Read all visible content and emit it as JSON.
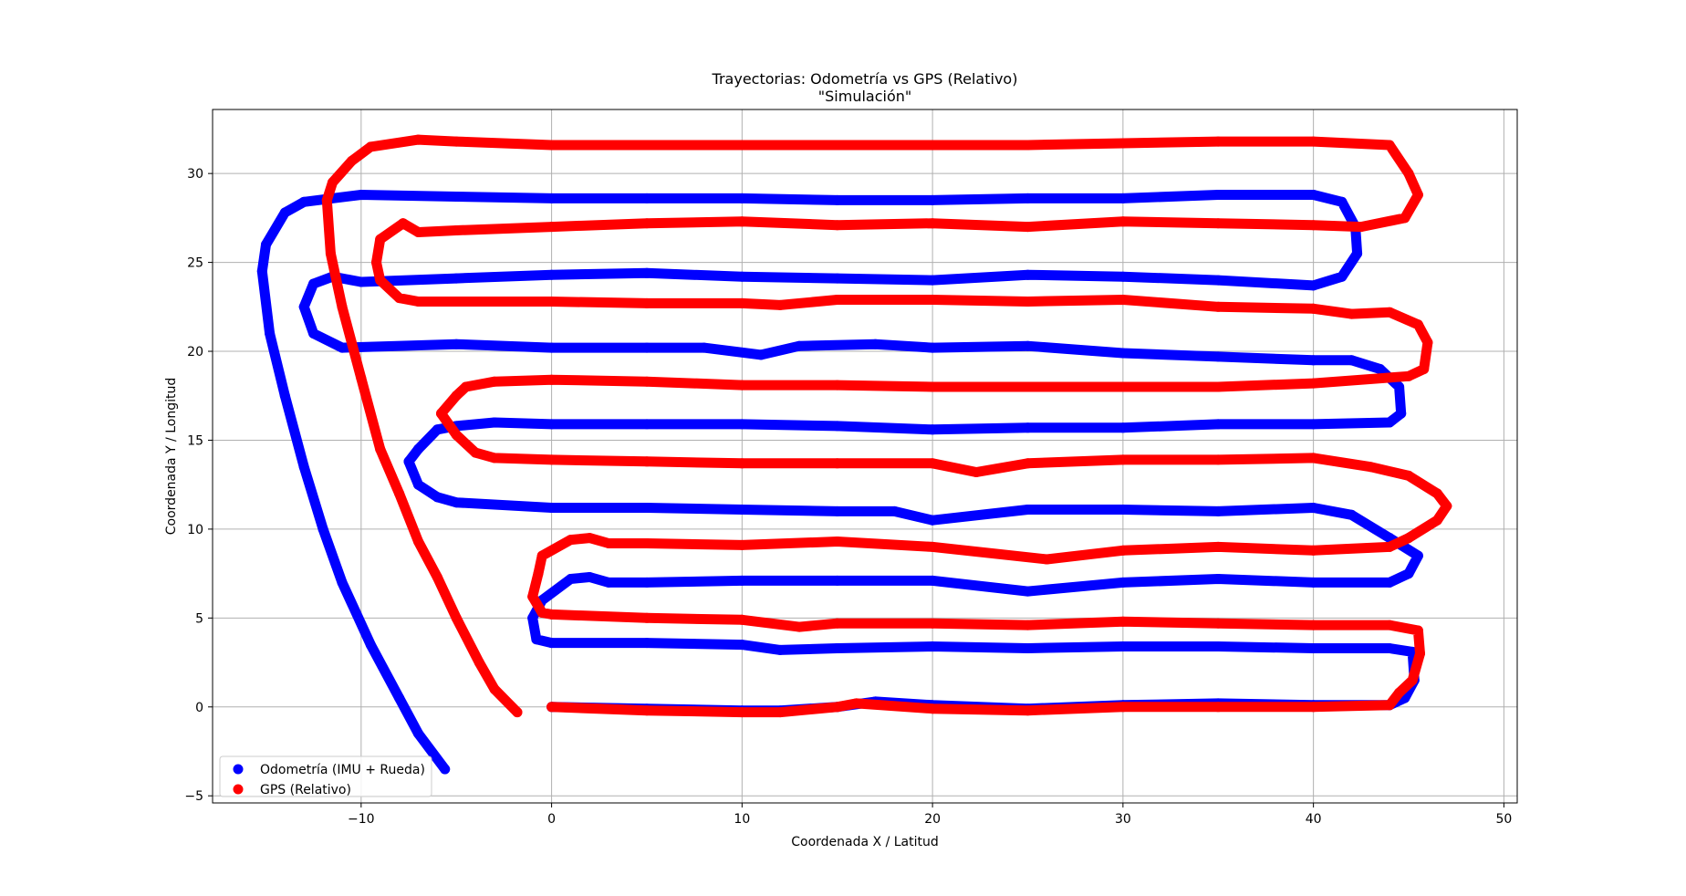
{
  "chart_data": {
    "type": "scatter",
    "title": "Trayectorias: Odometría vs GPS (Relativo)",
    "subtitle": "\"Simulación\"",
    "xlabel": "Coordenada X / Latitud",
    "ylabel": "Coordenada Y / Longitud",
    "xlim": [
      -17.8,
      50.7
    ],
    "ylim": [
      -5.4,
      33.6
    ],
    "xticks": [
      -10,
      0,
      10,
      20,
      30,
      40,
      50
    ],
    "yticks": [
      -5,
      0,
      5,
      10,
      15,
      20,
      25,
      30
    ],
    "grid": true,
    "legend_position": "lower-left",
    "series": [
      {
        "name": "Odometría (IMU + Rueda)",
        "color": "#0000ff",
        "points": [
          [
            -5.6,
            -3.5
          ],
          [
            -7,
            -1.5
          ],
          [
            -8,
            0.5
          ],
          [
            -9.5,
            3.5
          ],
          [
            -11,
            7
          ],
          [
            -12,
            10
          ],
          [
            -13,
            13.5
          ],
          [
            -14,
            17.5
          ],
          [
            -14.8,
            21
          ],
          [
            -15.2,
            24.5
          ],
          [
            -15,
            26
          ],
          [
            -14,
            27.8
          ],
          [
            -13,
            28.4
          ],
          [
            -10,
            28.8
          ],
          [
            -5,
            28.7
          ],
          [
            0,
            28.6
          ],
          [
            5,
            28.6
          ],
          [
            10,
            28.6
          ],
          [
            15,
            28.5
          ],
          [
            20,
            28.5
          ],
          [
            25,
            28.6
          ],
          [
            30,
            28.6
          ],
          [
            35,
            28.8
          ],
          [
            40,
            28.8
          ],
          [
            41.5,
            28.4
          ],
          [
            42.2,
            27
          ],
          [
            42.3,
            25.5
          ],
          [
            41.5,
            24.2
          ],
          [
            40,
            23.7
          ],
          [
            35,
            24
          ],
          [
            30,
            24.2
          ],
          [
            25,
            24.3
          ],
          [
            20,
            24
          ],
          [
            15,
            24.1
          ],
          [
            10,
            24.2
          ],
          [
            5,
            24.4
          ],
          [
            0,
            24.3
          ],
          [
            -5,
            24.1
          ],
          [
            -10,
            23.9
          ],
          [
            -11.5,
            24.2
          ],
          [
            -12.5,
            23.8
          ],
          [
            -13,
            22.5
          ],
          [
            -12.5,
            21
          ],
          [
            -11,
            20.2
          ],
          [
            -5,
            20.4
          ],
          [
            0,
            20.2
          ],
          [
            5,
            20.2
          ],
          [
            8,
            20.2
          ],
          [
            11,
            19.8
          ],
          [
            13,
            20.3
          ],
          [
            17,
            20.4
          ],
          [
            20,
            20.2
          ],
          [
            25,
            20.3
          ],
          [
            30,
            19.9
          ],
          [
            35,
            19.7
          ],
          [
            40,
            19.5
          ],
          [
            42,
            19.5
          ],
          [
            43.5,
            19
          ],
          [
            44.5,
            18
          ],
          [
            44.6,
            16.5
          ],
          [
            44,
            16
          ],
          [
            40,
            15.9
          ],
          [
            35,
            15.9
          ],
          [
            30,
            15.7
          ],
          [
            25,
            15.7
          ],
          [
            20,
            15.6
          ],
          [
            15,
            15.8
          ],
          [
            10,
            15.9
          ],
          [
            5,
            15.9
          ],
          [
            0,
            15.9
          ],
          [
            -3,
            16
          ],
          [
            -5,
            15.8
          ],
          [
            -6,
            15.6
          ],
          [
            -7,
            14.5
          ],
          [
            -7.5,
            13.8
          ],
          [
            -7,
            12.5
          ],
          [
            -6,
            11.8
          ],
          [
            -5,
            11.5
          ],
          [
            0,
            11.2
          ],
          [
            5,
            11.2
          ],
          [
            10,
            11.1
          ],
          [
            15,
            11.0
          ],
          [
            18,
            11.0
          ],
          [
            20,
            10.5
          ],
          [
            25,
            11.1
          ],
          [
            30,
            11.1
          ],
          [
            35,
            11.0
          ],
          [
            40,
            11.2
          ],
          [
            42,
            10.8
          ],
          [
            44,
            9.5
          ],
          [
            45.5,
            8.5
          ],
          [
            45,
            7.5
          ],
          [
            44,
            7
          ],
          [
            40,
            7
          ],
          [
            35,
            7.2
          ],
          [
            30,
            7
          ],
          [
            25,
            6.5
          ],
          [
            20,
            7.1
          ],
          [
            15,
            7.1
          ],
          [
            10,
            7.1
          ],
          [
            5,
            7.0
          ],
          [
            3,
            7.0
          ],
          [
            2,
            7.3
          ],
          [
            1,
            7.2
          ],
          [
            -0.5,
            6
          ],
          [
            -1,
            5
          ],
          [
            -0.8,
            3.8
          ],
          [
            0,
            3.6
          ],
          [
            5,
            3.6
          ],
          [
            10,
            3.5
          ],
          [
            12,
            3.2
          ],
          [
            15,
            3.3
          ],
          [
            20,
            3.4
          ],
          [
            25,
            3.3
          ],
          [
            30,
            3.4
          ],
          [
            35,
            3.4
          ],
          [
            40,
            3.3
          ],
          [
            44,
            3.3
          ],
          [
            45.2,
            3.1
          ],
          [
            45.3,
            1.5
          ],
          [
            44.8,
            0.5
          ],
          [
            44,
            0.1
          ],
          [
            40,
            0.1
          ],
          [
            35,
            0.2
          ],
          [
            30,
            0.1
          ],
          [
            25,
            -0.1
          ],
          [
            20,
            0.1
          ],
          [
            17,
            0.3
          ],
          [
            15,
            0
          ],
          [
            12,
            -0.2
          ],
          [
            10,
            -0.2
          ],
          [
            5,
            -0.1
          ],
          [
            0,
            0
          ]
        ]
      },
      {
        "name": "GPS (Relativo)",
        "color": "#ff0000",
        "points": [
          [
            -1.8,
            -0.3
          ],
          [
            -3,
            1
          ],
          [
            -3.8,
            2.5
          ],
          [
            -5,
            5
          ],
          [
            -6,
            7.3
          ],
          [
            -7,
            9.3
          ],
          [
            -8,
            12
          ],
          [
            -9,
            14.5
          ],
          [
            -10,
            18.5
          ],
          [
            -11,
            22.5
          ],
          [
            -11.6,
            25.5
          ],
          [
            -11.8,
            28.5
          ],
          [
            -11.5,
            29.5
          ],
          [
            -10.5,
            30.7
          ],
          [
            -9.5,
            31.5
          ],
          [
            -7,
            31.9
          ],
          [
            -5,
            31.8
          ],
          [
            0,
            31.6
          ],
          [
            5,
            31.6
          ],
          [
            10,
            31.6
          ],
          [
            15,
            31.6
          ],
          [
            20,
            31.6
          ],
          [
            25,
            31.6
          ],
          [
            30,
            31.7
          ],
          [
            35,
            31.8
          ],
          [
            40,
            31.8
          ],
          [
            44,
            31.6
          ],
          [
            45,
            30
          ],
          [
            45.5,
            28.8
          ],
          [
            44.8,
            27.5
          ],
          [
            42.5,
            27.0
          ],
          [
            40,
            27.1
          ],
          [
            35,
            27.2
          ],
          [
            30,
            27.3
          ],
          [
            25,
            27.0
          ],
          [
            20,
            27.2
          ],
          [
            15,
            27.1
          ],
          [
            10,
            27.3
          ],
          [
            5,
            27.2
          ],
          [
            0,
            27.0
          ],
          [
            -5,
            26.8
          ],
          [
            -7,
            26.7
          ],
          [
            -7.8,
            27.2
          ],
          [
            -9,
            26.3
          ],
          [
            -9.2,
            25
          ],
          [
            -9,
            24
          ],
          [
            -8,
            23
          ],
          [
            -7,
            22.8
          ],
          [
            0,
            22.8
          ],
          [
            5,
            22.7
          ],
          [
            10,
            22.7
          ],
          [
            12,
            22.6
          ],
          [
            15,
            22.9
          ],
          [
            20,
            22.9
          ],
          [
            25,
            22.8
          ],
          [
            30,
            22.9
          ],
          [
            35,
            22.5
          ],
          [
            40,
            22.4
          ],
          [
            42,
            22.1
          ],
          [
            44,
            22.2
          ],
          [
            45.5,
            21.5
          ],
          [
            46,
            20.5
          ],
          [
            45.8,
            19
          ],
          [
            45,
            18.6
          ],
          [
            40,
            18.2
          ],
          [
            35,
            18.0
          ],
          [
            30,
            18.0
          ],
          [
            25,
            18.0
          ],
          [
            20,
            18.0
          ],
          [
            15,
            18.1
          ],
          [
            10,
            18.1
          ],
          [
            5,
            18.3
          ],
          [
            0,
            18.4
          ],
          [
            -3,
            18.3
          ],
          [
            -4.5,
            18
          ],
          [
            -5,
            17.5
          ],
          [
            -5.8,
            16.5
          ],
          [
            -5,
            15.3
          ],
          [
            -4,
            14.3
          ],
          [
            -3,
            14.0
          ],
          [
            0,
            13.9
          ],
          [
            5,
            13.8
          ],
          [
            10,
            13.7
          ],
          [
            15,
            13.7
          ],
          [
            20,
            13.7
          ],
          [
            22.3,
            13.2
          ],
          [
            25,
            13.7
          ],
          [
            30,
            13.9
          ],
          [
            35,
            13.9
          ],
          [
            40,
            14.0
          ],
          [
            43,
            13.5
          ],
          [
            45,
            13
          ],
          [
            46.5,
            12
          ],
          [
            47,
            11.3
          ],
          [
            46.5,
            10.5
          ],
          [
            45,
            9.5
          ],
          [
            44,
            9
          ],
          [
            40,
            8.8
          ],
          [
            35,
            9.0
          ],
          [
            30,
            8.8
          ],
          [
            26,
            8.3
          ],
          [
            20,
            9.0
          ],
          [
            15,
            9.3
          ],
          [
            10,
            9.1
          ],
          [
            5,
            9.2
          ],
          [
            3,
            9.2
          ],
          [
            2,
            9.5
          ],
          [
            1,
            9.4
          ],
          [
            -0.5,
            8.5
          ],
          [
            -0.7,
            7.5
          ],
          [
            -1,
            6.2
          ],
          [
            -0.5,
            5.3
          ],
          [
            0,
            5.2
          ],
          [
            5,
            5.0
          ],
          [
            10,
            4.9
          ],
          [
            13,
            4.5
          ],
          [
            15,
            4.7
          ],
          [
            20,
            4.7
          ],
          [
            25,
            4.6
          ],
          [
            30,
            4.8
          ],
          [
            35,
            4.7
          ],
          [
            40,
            4.6
          ],
          [
            44,
            4.6
          ],
          [
            45.5,
            4.3
          ],
          [
            45.6,
            3
          ],
          [
            45.2,
            1.5
          ],
          [
            44.5,
            0.8
          ],
          [
            44,
            0.1
          ],
          [
            40,
            0
          ],
          [
            35,
            0
          ],
          [
            30,
            0
          ],
          [
            25,
            -0.2
          ],
          [
            20,
            -0.1
          ],
          [
            16,
            0.2
          ],
          [
            15,
            0.0
          ],
          [
            12,
            -0.3
          ],
          [
            10,
            -0.3
          ],
          [
            5,
            -0.2
          ],
          [
            0,
            0
          ]
        ]
      }
    ]
  }
}
